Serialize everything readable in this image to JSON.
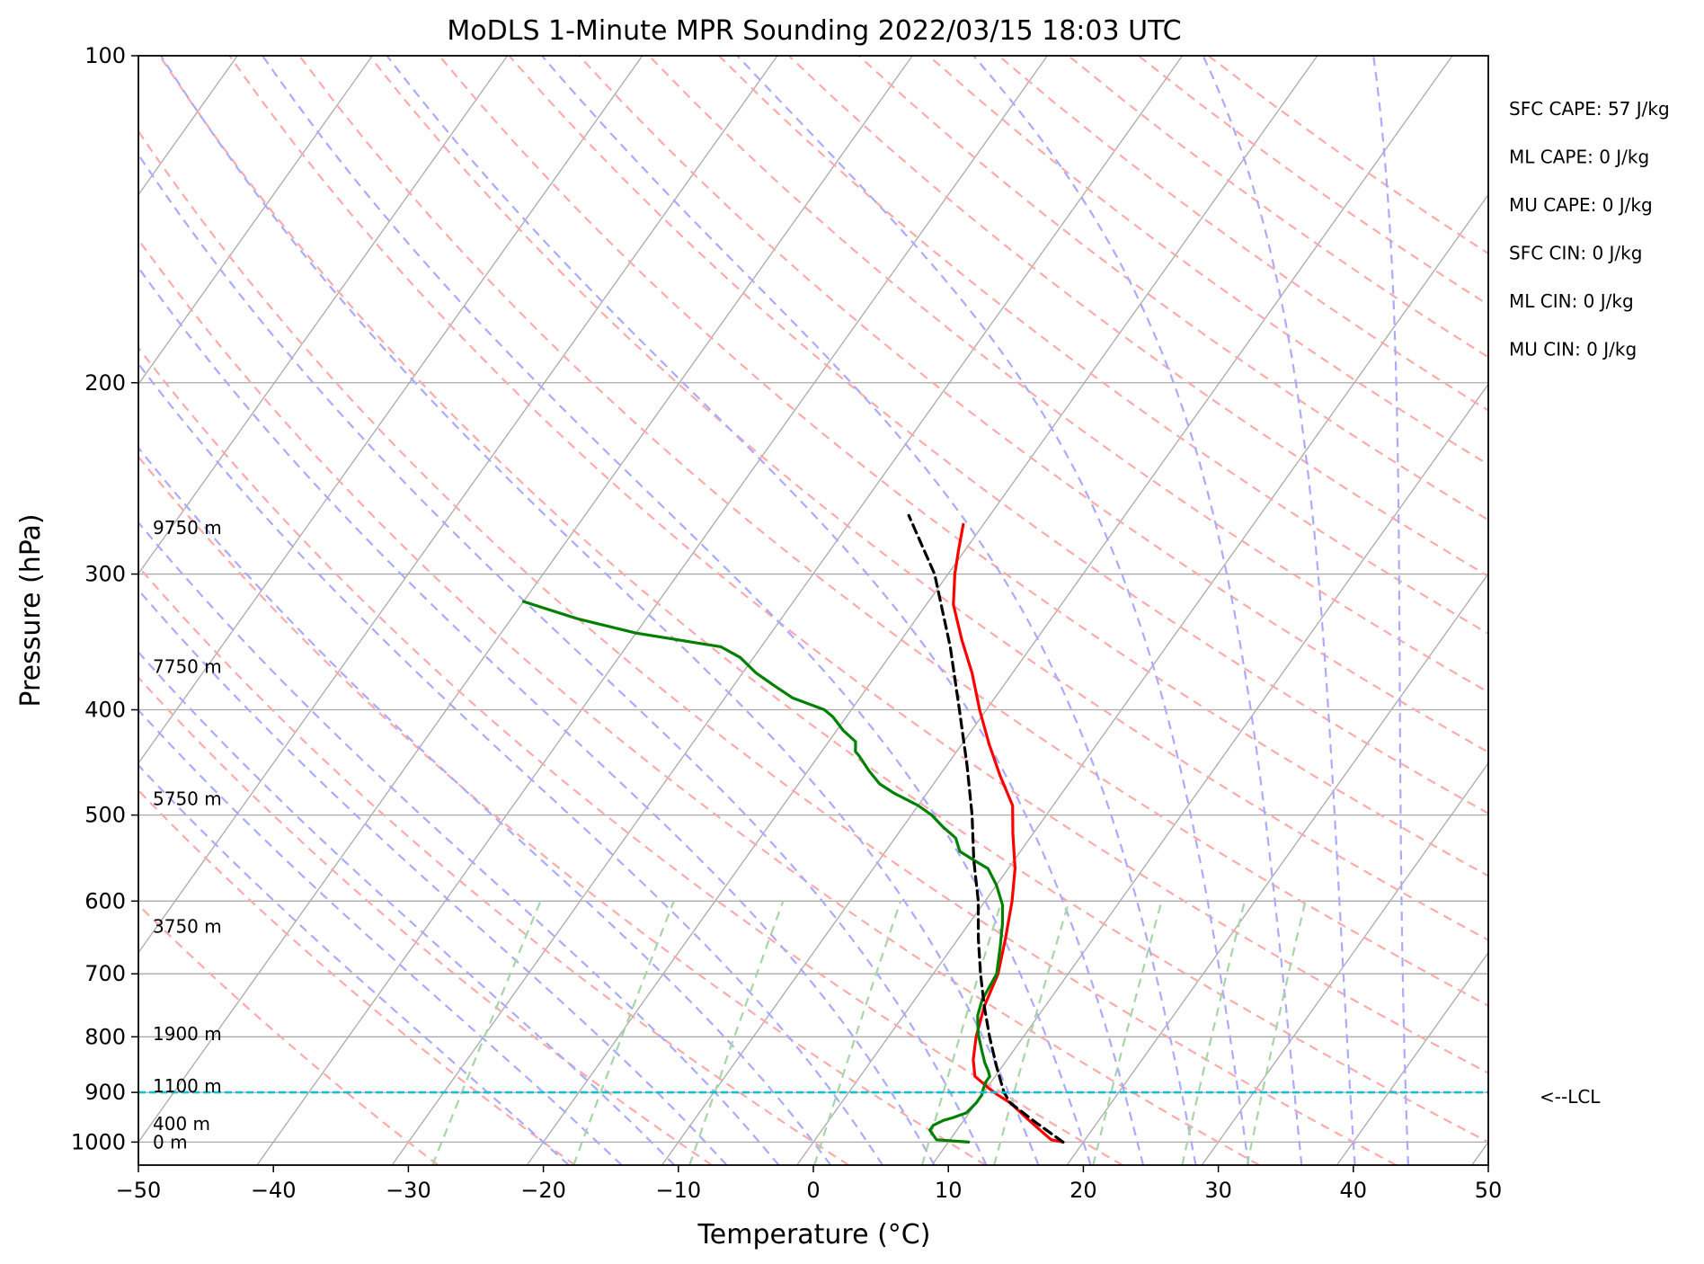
{
  "chart_data": {
    "type": "skew-t",
    "title": "MoDLS 1-Minute MPR Sounding 2022/03/15 18:03 UTC",
    "xlabel": "Temperature (°C)",
    "ylabel": "Pressure (hPa)",
    "xlim": [
      -50,
      50
    ],
    "ylim": [
      1050,
      100
    ],
    "y_scale": "log",
    "grid": true,
    "x_ticks": [
      -50,
      -40,
      -30,
      -20,
      -10,
      0,
      10,
      20,
      30,
      40,
      50
    ],
    "x_tick_labels": [
      "−50",
      "−40",
      "−30",
      "−20",
      "−10",
      "0",
      "10",
      "20",
      "30",
      "40",
      "50"
    ],
    "y_ticks": [
      1000,
      900,
      800,
      700,
      600,
      500,
      400,
      300,
      200,
      100
    ],
    "y_tick_labels": [
      "1000",
      "900",
      "800",
      "700",
      "600",
      "500",
      "400",
      "300",
      "200",
      "100"
    ],
    "series": [
      {
        "color": "#ff0000",
        "role": "temperature",
        "points": [
          [
            18.5,
            1000
          ],
          [
            17.5,
            995
          ],
          [
            16.5,
            980
          ],
          [
            14.5,
            950
          ],
          [
            12.5,
            920
          ],
          [
            11,
            903
          ],
          [
            10,
            890
          ],
          [
            8.5,
            870
          ],
          [
            7.5,
            840
          ],
          [
            6.5,
            800
          ],
          [
            5.5,
            750
          ],
          [
            4.8,
            700
          ],
          [
            3.5,
            650
          ],
          [
            2,
            600
          ],
          [
            0.5,
            560
          ],
          [
            -1.5,
            520
          ],
          [
            -3,
            490
          ],
          [
            -5.5,
            460
          ],
          [
            -8,
            430
          ],
          [
            -10.5,
            400
          ],
          [
            -13,
            370
          ],
          [
            -15.5,
            345
          ],
          [
            -18,
            320
          ],
          [
            -19.5,
            300
          ],
          [
            -20.5,
            285
          ],
          [
            -21.5,
            270
          ]
        ]
      },
      {
        "color": "#008000",
        "role": "dewpoint",
        "points": [
          [
            11.5,
            1000
          ],
          [
            9,
            995
          ],
          [
            8.5,
            985
          ],
          [
            8,
            975
          ],
          [
            8,
            965
          ],
          [
            8.5,
            955
          ],
          [
            9,
            950
          ],
          [
            9.8,
            940
          ],
          [
            10,
            920
          ],
          [
            10,
            905
          ],
          [
            9.8,
            895
          ],
          [
            9.6,
            880
          ],
          [
            9.6,
            870
          ],
          [
            9.2,
            860
          ],
          [
            8.5,
            845
          ],
          [
            7.5,
            820
          ],
          [
            6.5,
            795
          ],
          [
            5.5,
            765
          ],
          [
            5,
            740
          ],
          [
            4.7,
            700
          ],
          [
            3.5,
            660
          ],
          [
            2.5,
            630
          ],
          [
            1.5,
            605
          ],
          [
            0,
            580
          ],
          [
            -1.5,
            560
          ],
          [
            -3,
            550
          ],
          [
            -4.5,
            540
          ],
          [
            -5.5,
            525
          ],
          [
            -7,
            513
          ],
          [
            -8.5,
            500
          ],
          [
            -10,
            490
          ],
          [
            -12.5,
            477
          ],
          [
            -14,
            468
          ],
          [
            -15.5,
            455
          ],
          [
            -17,
            441
          ],
          [
            -17.5,
            437
          ],
          [
            -18,
            428
          ],
          [
            -19.5,
            418
          ],
          [
            -21,
            406
          ],
          [
            -22,
            400
          ],
          [
            -25,
            390
          ],
          [
            -27,
            380
          ],
          [
            -29,
            370
          ],
          [
            -31,
            358
          ],
          [
            -33,
            350
          ],
          [
            -40,
            340
          ],
          [
            -45,
            330
          ],
          [
            -50,
            318
          ]
        ]
      },
      {
        "color": "#000000",
        "role": "parcel",
        "points": [
          [
            18.5,
            1000
          ],
          [
            15.5,
            960
          ],
          [
            12.5,
            920
          ],
          [
            11.5,
            900
          ],
          [
            9.5,
            850
          ],
          [
            7.5,
            800
          ],
          [
            5.5,
            750
          ],
          [
            3.5,
            700
          ],
          [
            1.5,
            650
          ],
          [
            -0.5,
            600
          ],
          [
            -3,
            550
          ],
          [
            -5.5,
            500
          ],
          [
            -8.5,
            450
          ],
          [
            -12,
            400
          ],
          [
            -16,
            350
          ],
          [
            -21,
            300
          ],
          [
            -26,
            265
          ]
        ]
      }
    ],
    "lcl_pressure": 900,
    "lcl_label": "<--LCL",
    "height_labels": [
      {
        "text": "9750 m",
        "p": 272
      },
      {
        "text": "7750 m",
        "p": 365
      },
      {
        "text": "5750 m",
        "p": 483
      },
      {
        "text": "3750 m",
        "p": 633
      },
      {
        "text": "1900 m",
        "p": 795
      },
      {
        "text": "1100 m",
        "p": 888
      },
      {
        "text": "400 m",
        "p": 962
      },
      {
        "text": "0 m",
        "p": 1000
      }
    ],
    "stats": [
      "SFC CAPE: 57 J/kg",
      "ML CAPE: 0 J/kg",
      "MU CAPE: 0 J/kg",
      "SFC CIN: 0 J/kg",
      "ML CIN: 0 J/kg",
      "MU CIN: 0 J/kg"
    ],
    "colors": {
      "isotherm": "#aaaaaa",
      "dry_adiabat": "#ffaaaa",
      "moist_adiabat": "#aaaaff",
      "mixing_ratio": "#a6d5a6",
      "lcl": "#17becf"
    }
  }
}
